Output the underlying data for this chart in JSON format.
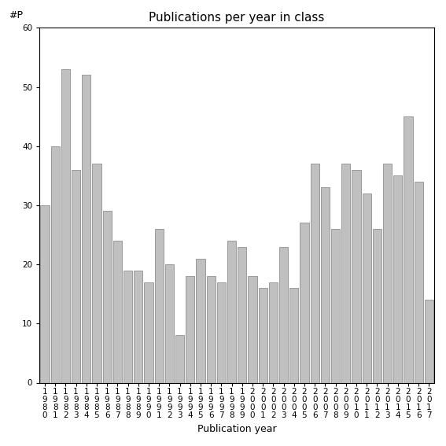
{
  "title": "Publications per year in class",
  "xlabel": "Publication year",
  "ylabel": "#P",
  "years": [
    1980,
    1981,
    1982,
    1983,
    1984,
    1985,
    1986,
    1987,
    1988,
    1989,
    1990,
    1991,
    1992,
    1993,
    1994,
    1995,
    1996,
    1997,
    1998,
    1999,
    2000,
    2001,
    2002,
    2003,
    2004,
    2005,
    2006,
    2007,
    2008,
    2009,
    2010,
    2011,
    2012,
    2013,
    2014,
    2015,
    2016,
    2017
  ],
  "values": [
    30,
    40,
    53,
    36,
    52,
    37,
    29,
    24,
    19,
    19,
    17,
    26,
    20,
    8,
    18,
    21,
    18,
    17,
    24,
    23,
    18,
    16,
    17,
    23,
    16,
    27,
    37,
    33,
    26,
    37,
    36,
    32,
    26,
    37,
    35,
    45,
    34,
    14
  ],
  "bar_color": "#c0c0c0",
  "bar_edge_color": "#808080",
  "ylim": [
    0,
    60
  ],
  "yticks": [
    0,
    10,
    20,
    30,
    40,
    50,
    60
  ],
  "background_color": "#ffffff",
  "title_fontsize": 11,
  "axis_label_fontsize": 9,
  "tick_fontsize": 7.5
}
